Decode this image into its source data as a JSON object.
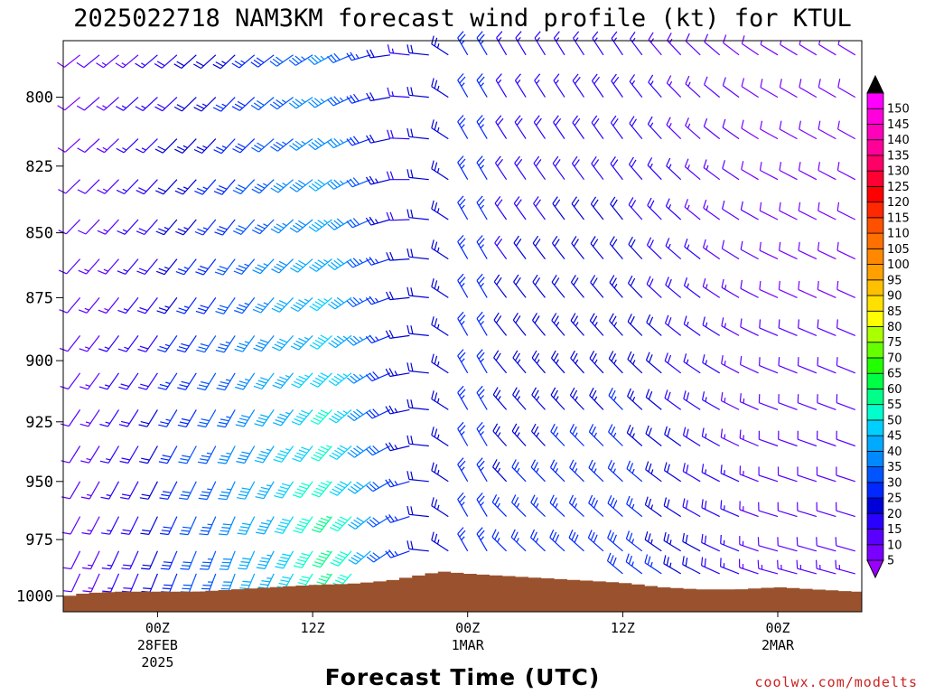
{
  "chart_data": {
    "type": "wind-barb-time-height",
    "title": "2025022718 NAM3KM forecast wind profile (kt) for KTUL",
    "xlabel": "Forecast Time (UTC)",
    "y_axis": {
      "ticks": [
        800,
        825,
        850,
        875,
        900,
        925,
        950,
        975,
        1000
      ],
      "range_hPa": [
        780,
        1007
      ],
      "inverted": true
    },
    "x_axis": {
      "range_hours_from_init": [
        -1.3,
        60.5
      ],
      "ticks": [
        {
          "label": "00Z",
          "sub1": "28FEB",
          "sub2": "2025"
        },
        {
          "label": "12Z",
          "sub1": "",
          "sub2": ""
        },
        {
          "label": "00Z",
          "sub1": "1MAR",
          "sub2": ""
        },
        {
          "label": "12Z",
          "sub1": "",
          "sub2": ""
        },
        {
          "label": "00Z",
          "sub1": "2MAR",
          "sub2": ""
        }
      ],
      "tick_hours": [
        6,
        18,
        30,
        42,
        54
      ]
    },
    "wind_levels_hPa": [
      785,
      800,
      815,
      830,
      845,
      860,
      875,
      890,
      905,
      920,
      935,
      950,
      965,
      980,
      990
    ],
    "wind_profile": [
      {
        "h": 0,
        "dir": 205,
        "spd": 12
      },
      {
        "h": 12,
        "dir": 200,
        "spd": 30
      },
      {
        "h": 20,
        "dir": 215,
        "spd": 45
      },
      {
        "h": 25,
        "dir": 240,
        "spd": 20
      },
      {
        "h": 30,
        "dir": 330,
        "spd": 25
      },
      {
        "h": 42,
        "dir": 325,
        "spd": 28
      },
      {
        "h": 54,
        "dir": 300,
        "spd": 12
      }
    ],
    "surface_pressure": {
      "hours": [
        -1,
        0,
        1,
        3,
        6,
        9,
        12,
        15,
        18,
        21,
        24,
        26,
        27,
        28,
        30,
        33,
        36,
        39,
        42,
        45,
        48,
        51,
        54,
        57,
        60
      ],
      "hPa": [
        1000,
        999,
        998.5,
        998,
        998,
        998,
        997,
        996,
        995,
        994.5,
        993,
        991,
        990,
        989,
        990,
        991,
        992,
        993,
        994,
        996,
        997,
        997,
        996,
        997,
        998
      ]
    },
    "colorbar": {
      "units": "kt",
      "levels": [
        5,
        10,
        15,
        20,
        25,
        30,
        35,
        40,
        45,
        50,
        55,
        60,
        65,
        70,
        75,
        80,
        85,
        90,
        95,
        100,
        105,
        110,
        115,
        120,
        125,
        130,
        135,
        140,
        145,
        150
      ],
      "colors": [
        "#7a00ff",
        "#5a00ff",
        "#2a00ff",
        "#0000d8",
        "#0028ff",
        "#0055ff",
        "#0088ff",
        "#00aaff",
        "#00d0ff",
        "#00ffcc",
        "#00ff88",
        "#00ff44",
        "#22ff00",
        "#66ff00",
        "#aaff00",
        "#ffff00",
        "#ffe000",
        "#ffc000",
        "#ffa000",
        "#ff8800",
        "#ff7000",
        "#ff5000",
        "#ff2800",
        "#ff0000",
        "#ff0033",
        "#ff0066",
        "#ff0099",
        "#ff00bb",
        "#ff00dd",
        "#ff00ff"
      ],
      "arrow_low_color": "#9a00ff",
      "arrow_high_color": "#000000"
    },
    "terrain_color": "#9a522e",
    "credit": "coolwx.com/modelts"
  }
}
